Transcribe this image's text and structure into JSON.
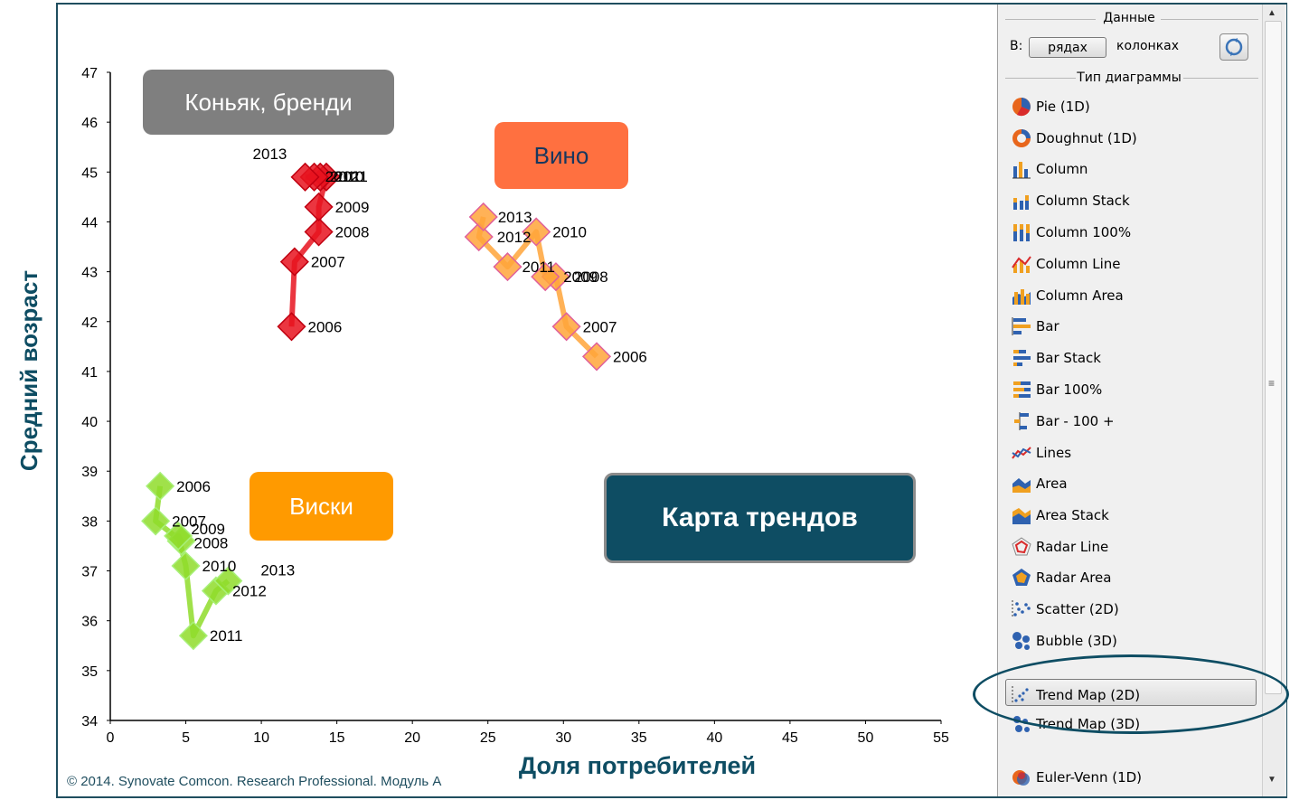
{
  "chart_data": {
    "type": "scatter",
    "xlabel": "Доля потребителей",
    "ylabel": "Средний возраст",
    "xlim": [
      0,
      55
    ],
    "ylim": [
      34,
      47
    ],
    "x_ticks": [
      "0",
      "5",
      "10",
      "15",
      "20",
      "25",
      "30",
      "35",
      "40",
      "45",
      "50",
      "55"
    ],
    "y_ticks": [
      "34",
      "35",
      "36",
      "37",
      "38",
      "39",
      "40",
      "41",
      "42",
      "43",
      "44",
      "45",
      "46",
      "47"
    ],
    "grid": false,
    "series": [
      {
        "name": "Коньяк, бренди",
        "color": "#e8131f",
        "points": [
          {
            "label": "2006",
            "x": 12.0,
            "y": 41.9
          },
          {
            "label": "2007",
            "x": 12.2,
            "y": 43.2
          },
          {
            "label": "2008",
            "x": 13.8,
            "y": 43.8
          },
          {
            "label": "2009",
            "x": 13.8,
            "y": 44.3
          },
          {
            "label": "2010",
            "x": 14.3,
            "y": 44.9
          },
          {
            "label": "2011",
            "x": 13.9,
            "y": 44.9
          },
          {
            "label": "2012",
            "x": 13.5,
            "y": 44.9
          },
          {
            "label": "2013",
            "x": 12.9,
            "y": 44.9
          }
        ]
      },
      {
        "name": "Вино",
        "color": "#ffa53a",
        "points": [
          {
            "label": "2006",
            "x": 32.2,
            "y": 41.3
          },
          {
            "label": "2007",
            "x": 30.2,
            "y": 41.9
          },
          {
            "label": "2008",
            "x": 29.5,
            "y": 42.9
          },
          {
            "label": "2009",
            "x": 28.8,
            "y": 42.9
          },
          {
            "label": "2010",
            "x": 28.2,
            "y": 43.8
          },
          {
            "label": "2011",
            "x": 26.3,
            "y": 43.1
          },
          {
            "label": "2012",
            "x": 24.4,
            "y": 43.7
          },
          {
            "label": "2013",
            "x": 24.7,
            "y": 44.1
          }
        ]
      },
      {
        "name": "Виски",
        "color": "#8fdc2a",
        "points": [
          {
            "label": "2006",
            "x": 3.3,
            "y": 38.7
          },
          {
            "label": "2007",
            "x": 3.0,
            "y": 38.0
          },
          {
            "label": "2008",
            "x": 4.7,
            "y": 37.6
          },
          {
            "label": "2009",
            "x": 4.5,
            "y": 37.7
          },
          {
            "label": "2010",
            "x": 5.0,
            "y": 37.1
          },
          {
            "label": "2011",
            "x": 5.5,
            "y": 35.7
          },
          {
            "label": "2012",
            "x": 7.0,
            "y": 36.6
          },
          {
            "label": "2013",
            "x": 7.8,
            "y": 36.8
          }
        ]
      }
    ]
  },
  "overlay_labels": {
    "cognac": "Коньяк, бренди",
    "wine": "Вино",
    "whisky": "Виски",
    "trend_map": "Карта трендов"
  },
  "copyright": "© 2014. Synovate Comcon. Research Professional. Модуль А",
  "panel": {
    "data_group_title": "Данные",
    "in_label": "В:",
    "rows_button": "рядах",
    "columns_label": "колонках",
    "chart_type_group_title": "Тип диаграммы",
    "chart_types": [
      {
        "label": "Pie (1D)",
        "icon": "pie-chart-icon"
      },
      {
        "label": "Doughnut (1D)",
        "icon": "doughnut-chart-icon"
      },
      {
        "label": "Column",
        "icon": "column-chart-icon"
      },
      {
        "label": "Column Stack",
        "icon": "column-stack-chart-icon"
      },
      {
        "label": "Column 100%",
        "icon": "column-100-chart-icon"
      },
      {
        "label": "Column Line",
        "icon": "column-line-chart-icon"
      },
      {
        "label": "Column Area",
        "icon": "column-area-chart-icon"
      },
      {
        "label": "Bar",
        "icon": "bar-chart-icon"
      },
      {
        "label": "Bar Stack",
        "icon": "bar-stack-chart-icon"
      },
      {
        "label": "Bar 100%",
        "icon": "bar-100-chart-icon"
      },
      {
        "label": "Bar - 100 +",
        "icon": "bar-diverging-chart-icon"
      },
      {
        "label": "Lines",
        "icon": "lines-chart-icon"
      },
      {
        "label": "Area",
        "icon": "area-chart-icon"
      },
      {
        "label": "Area Stack",
        "icon": "area-stack-chart-icon"
      },
      {
        "label": "Radar Line",
        "icon": "radar-line-chart-icon"
      },
      {
        "label": "Radar Area",
        "icon": "radar-area-chart-icon"
      },
      {
        "label": "Scatter (2D)",
        "icon": "scatter-chart-icon"
      },
      {
        "label": "Bubble (3D)",
        "icon": "bubble-chart-icon"
      },
      {
        "label": "Trend Map (2D)",
        "icon": "trend-map-2d-icon",
        "selected": true
      },
      {
        "label": "Trend Map (3D)",
        "icon": "trend-map-3d-icon"
      },
      {
        "label": "Euler-Venn (1D)",
        "icon": "euler-venn-icon"
      }
    ]
  }
}
